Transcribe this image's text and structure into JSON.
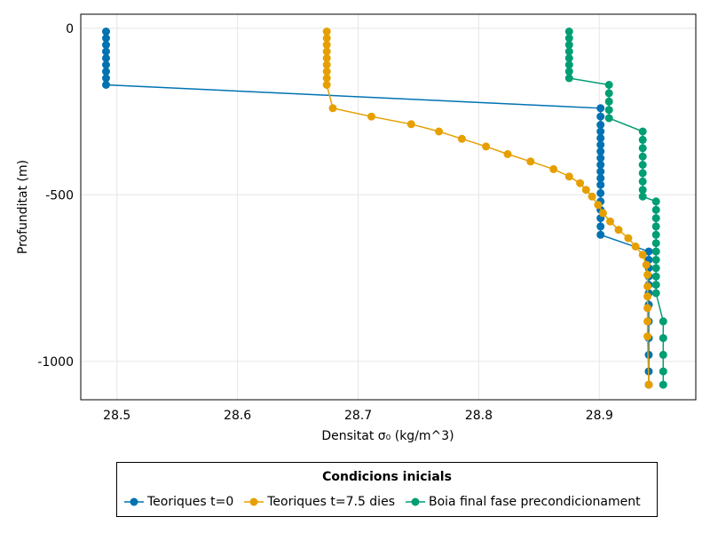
{
  "chart_data": {
    "type": "line",
    "xlabel": "Densitat σ₀ (kg/m^3)",
    "ylabel": "Profunditat (m)",
    "xlim": [
      28.47,
      28.98
    ],
    "ylim": [
      -1115,
      42
    ],
    "xticks": [
      28.5,
      28.6,
      28.7,
      28.8,
      28.9
    ],
    "xtick_labels": [
      "28.5",
      "28.6",
      "28.7",
      "28.8",
      "28.9"
    ],
    "yticks": [
      0,
      -500,
      -1000
    ],
    "ytick_labels": [
      "0",
      "-500",
      "-1000"
    ],
    "grid": true,
    "legend_position": "bottom",
    "legend_title": "Condicions inicials",
    "series": [
      {
        "name": "Teoriques t=0",
        "color": "#0072b2",
        "x": [
          28.491,
          28.491,
          28.491,
          28.491,
          28.491,
          28.491,
          28.491,
          28.491,
          28.491,
          28.901,
          28.901,
          28.901,
          28.901,
          28.901,
          28.901,
          28.901,
          28.901,
          28.901,
          28.901,
          28.901,
          28.901,
          28.901,
          28.901,
          28.901,
          28.901,
          28.901,
          28.901,
          28.941,
          28.941,
          28.941,
          28.941,
          28.941,
          28.941,
          28.941,
          28.941,
          28.941,
          28.941,
          28.941,
          28.941
        ],
        "y": [
          -10,
          -30,
          -50,
          -70,
          -90,
          -110,
          -130,
          -150,
          -170,
          -240,
          -265,
          -290,
          -310,
          -330,
          -350,
          -370,
          -390,
          -410,
          -430,
          -450,
          -470,
          -495,
          -520,
          -545,
          -570,
          -595,
          -620,
          -670,
          -695,
          -720,
          -745,
          -770,
          -795,
          -830,
          -880,
          -930,
          -980,
          -1030,
          -1070
        ]
      },
      {
        "name": "Teoriques t=7.5 dies",
        "color": "#e69f00",
        "x": [
          28.674,
          28.674,
          28.674,
          28.674,
          28.674,
          28.674,
          28.674,
          28.674,
          28.674,
          28.679,
          28.711,
          28.744,
          28.767,
          28.786,
          28.806,
          28.824,
          28.843,
          28.862,
          28.875,
          28.884,
          28.889,
          28.894,
          28.899,
          28.903,
          28.909,
          28.916,
          28.924,
          28.93,
          28.936,
          28.939,
          28.94,
          28.94,
          28.94,
          28.94,
          28.94,
          28.94,
          28.941
        ],
        "y": [
          -10,
          -30,
          -50,
          -70,
          -90,
          -110,
          -130,
          -150,
          -170,
          -240,
          -265,
          -288,
          -310,
          -332,
          -355,
          -378,
          -400,
          -423,
          -445,
          -465,
          -485,
          -505,
          -530,
          -555,
          -580,
          -605,
          -630,
          -655,
          -680,
          -710,
          -740,
          -775,
          -805,
          -840,
          -880,
          -925,
          -1070
        ]
      },
      {
        "name": "Boia final fase precondicionament",
        "color": "#009e73",
        "x": [
          28.875,
          28.875,
          28.875,
          28.875,
          28.875,
          28.875,
          28.875,
          28.875,
          28.908,
          28.908,
          28.908,
          28.908,
          28.908,
          28.936,
          28.936,
          28.936,
          28.936,
          28.936,
          28.936,
          28.936,
          28.936,
          28.936,
          28.947,
          28.947,
          28.947,
          28.947,
          28.947,
          28.947,
          28.947,
          28.947,
          28.947,
          28.947,
          28.947,
          28.947,
          28.953,
          28.953,
          28.953,
          28.953,
          28.953
        ],
        "y": [
          -10,
          -30,
          -50,
          -70,
          -90,
          -110,
          -130,
          -150,
          -170,
          -195,
          -220,
          -245,
          -270,
          -310,
          -335,
          -360,
          -385,
          -410,
          -435,
          -460,
          -485,
          -505,
          -520,
          -545,
          -570,
          -595,
          -620,
          -645,
          -670,
          -695,
          -720,
          -745,
          -770,
          -795,
          -880,
          -930,
          -980,
          -1030,
          -1070
        ]
      }
    ]
  }
}
